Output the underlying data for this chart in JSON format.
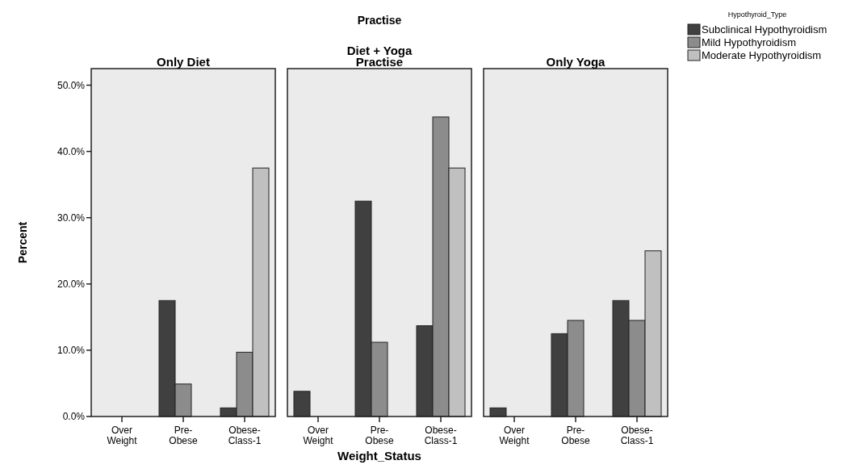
{
  "chart_data": [
    {
      "type": "bar",
      "title": "Only Diet",
      "ylabel": "Percent",
      "categories": [
        "Over Weight",
        "Pre-Obese",
        "Obese-Class-1"
      ],
      "ylim": [
        0,
        52.5
      ],
      "yticks": [
        {
          "value": 0,
          "label": "0.0%"
        },
        {
          "value": 10,
          "label": "10.0%"
        },
        {
          "value": 20,
          "label": "20.0%"
        },
        {
          "value": 30,
          "label": "30.0%"
        },
        {
          "value": 40,
          "label": "40.0%"
        },
        {
          "value": 50,
          "label": "50.0%"
        }
      ],
      "grid": false,
      "legend": false,
      "series": [
        {
          "color": "#404040",
          "values": [
            null,
            17.5,
            1.3
          ]
        },
        {
          "color": "#8c8c8c",
          "values": [
            null,
            4.9,
            9.7
          ]
        },
        {
          "color": "#c0c0c0",
          "values": [
            null,
            null,
            37.5
          ]
        }
      ]
    },
    {
      "type": "bar",
      "title": "Diet + Yoga Practise",
      "xlabel": "Weight_Status",
      "annotations": [
        "Practise"
      ],
      "categories": [
        "Over Weight",
        "Pre-Obese",
        "Obese-Class-1"
      ],
      "ylim": [
        0,
        52.5
      ],
      "tick_labels": "x",
      "grid": false,
      "legend": false,
      "series": [
        {
          "color": "#404040",
          "values": [
            3.8,
            32.5,
            13.7
          ]
        },
        {
          "color": "#8c8c8c",
          "values": [
            null,
            11.2,
            45.2
          ]
        },
        {
          "color": "#c0c0c0",
          "values": [
            null,
            null,
            37.5
          ]
        }
      ]
    },
    {
      "type": "bar",
      "title": "Only Yoga",
      "legend_title": "Hypothyroid_Type",
      "categories": [
        "Over Weight",
        "Pre-Obese",
        "Obese-Class-1"
      ],
      "ylim": [
        0,
        52.5
      ],
      "tick_labels": "x",
      "grid": false,
      "legend": "top right",
      "series": [
        {
          "name": "Subclinical Hypothyroidism",
          "color": "#404040",
          "values": [
            1.3,
            12.5,
            17.5
          ]
        },
        {
          "name": "Mild Hypothyroidism",
          "color": "#8c8c8c",
          "values": [
            null,
            14.5,
            14.5
          ]
        },
        {
          "name": "Moderate Hypothyroidism",
          "color": "#c0c0c0",
          "values": [
            null,
            null,
            25
          ]
        }
      ]
    }
  ]
}
